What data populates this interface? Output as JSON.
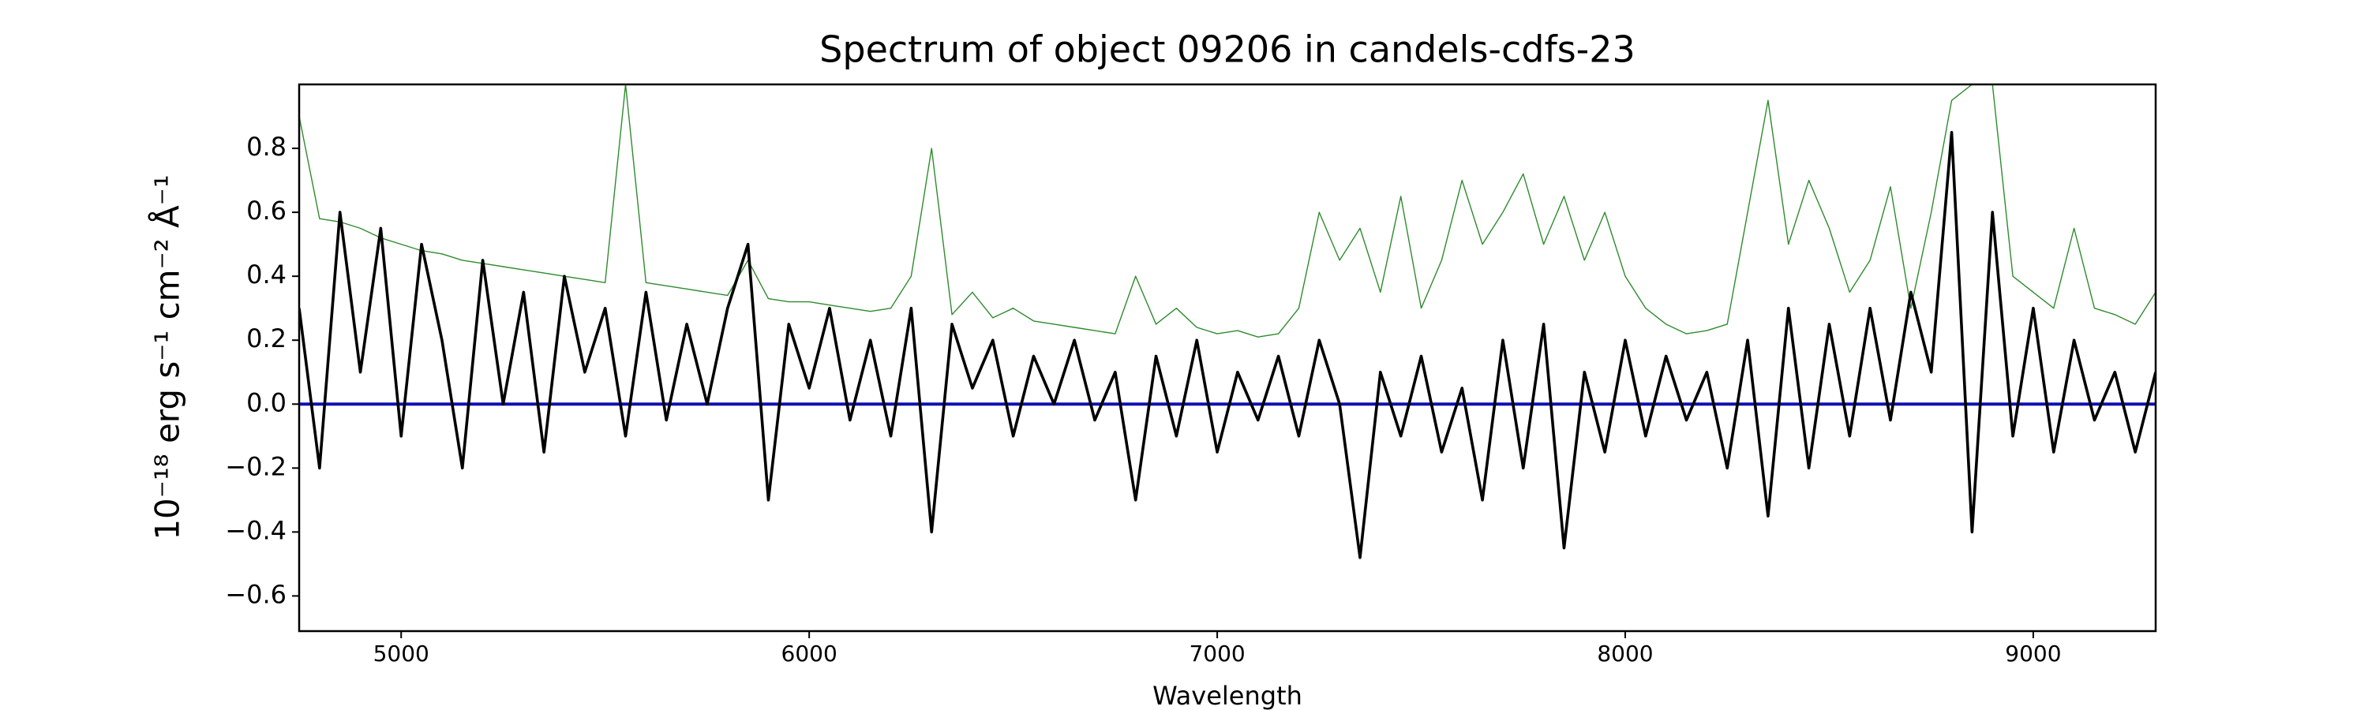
{
  "chart_data": {
    "type": "line",
    "title": "Spectrum of object 09206 in candels-cdfs-23",
    "xlabel": "Wavelength",
    "ylabel": "10⁻¹⁸ erg s⁻¹ cm⁻² Å⁻¹",
    "xlim": [
      4750,
      9300
    ],
    "ylim": [
      -0.71,
      1.0
    ],
    "xticks": [
      5000,
      6000,
      7000,
      8000,
      9000
    ],
    "yticks": [
      {
        "value": -0.6,
        "label": "−0.6"
      },
      {
        "value": -0.4,
        "label": "−0.4"
      },
      {
        "value": -0.2,
        "label": "−0.2"
      },
      {
        "value": 0,
        "label": "0.0"
      },
      {
        "value": 0.2,
        "label": "0.2"
      },
      {
        "value": 0.4,
        "label": "0.4"
      },
      {
        "value": 0.6,
        "label": "0.6"
      },
      {
        "value": 0.8,
        "label": "0.8"
      }
    ],
    "series": [
      {
        "color": "#2e8b2e",
        "width": 1.4,
        "x": [
          4750,
          4800,
          4850,
          4900,
          4950,
          5000,
          5050,
          5100,
          5150,
          5200,
          5250,
          5300,
          5350,
          5400,
          5450,
          5500,
          5550,
          5600,
          5650,
          5700,
          5750,
          5800,
          5850,
          5900,
          5950,
          6000,
          6050,
          6100,
          6150,
          6200,
          6250,
          6300,
          6350,
          6400,
          6450,
          6500,
          6550,
          6600,
          6650,
          6700,
          6750,
          6800,
          6850,
          6900,
          6950,
          7000,
          7050,
          7100,
          7150,
          7200,
          7250,
          7300,
          7350,
          7400,
          7450,
          7500,
          7550,
          7600,
          7650,
          7700,
          7750,
          7800,
          7850,
          7900,
          7950,
          8000,
          8050,
          8100,
          8150,
          8200,
          8250,
          8300,
          8350,
          8400,
          8450,
          8500,
          8550,
          8600,
          8650,
          8700,
          8750,
          8800,
          8850,
          8900,
          8950,
          9000,
          9050,
          9100,
          9150,
          9200,
          9250,
          9300
        ],
        "values": [
          0.9,
          0.58,
          0.57,
          0.55,
          0.52,
          0.5,
          0.48,
          0.47,
          0.45,
          0.44,
          0.43,
          0.42,
          0.41,
          0.4,
          0.39,
          0.38,
          1.0,
          0.38,
          0.37,
          0.36,
          0.35,
          0.34,
          0.45,
          0.33,
          0.32,
          0.32,
          0.31,
          0.3,
          0.29,
          0.3,
          0.4,
          0.8,
          0.28,
          0.35,
          0.27,
          0.3,
          0.26,
          0.25,
          0.24,
          0.23,
          0.22,
          0.4,
          0.25,
          0.3,
          0.24,
          0.22,
          0.23,
          0.21,
          0.22,
          0.3,
          0.6,
          0.45,
          0.55,
          0.35,
          0.65,
          0.3,
          0.45,
          0.7,
          0.5,
          0.6,
          0.72,
          0.5,
          0.65,
          0.45,
          0.6,
          0.4,
          0.3,
          0.25,
          0.22,
          0.23,
          0.25,
          0.6,
          0.95,
          0.5,
          0.7,
          0.55,
          0.35,
          0.45,
          0.68,
          0.3,
          0.6,
          0.95,
          1.0,
          1.0,
          0.4,
          0.35,
          0.3,
          0.55,
          0.3,
          0.28,
          0.25,
          0.35
        ]
      },
      {
        "color": "#1010b0",
        "width": 4,
        "x": [
          4750,
          9300
        ],
        "values": [
          0,
          0
        ]
      },
      {
        "color": "#000000",
        "width": 3.6,
        "x": [
          4750,
          4800,
          4850,
          4900,
          4950,
          5000,
          5050,
          5100,
          5150,
          5200,
          5250,
          5300,
          5350,
          5400,
          5450,
          5500,
          5550,
          5600,
          5650,
          5700,
          5750,
          5800,
          5850,
          5900,
          5950,
          6000,
          6050,
          6100,
          6150,
          6200,
          6250,
          6300,
          6350,
          6400,
          6450,
          6500,
          6550,
          6600,
          6650,
          6700,
          6750,
          6800,
          6850,
          6900,
          6950,
          7000,
          7050,
          7100,
          7150,
          7200,
          7250,
          7300,
          7350,
          7400,
          7450,
          7500,
          7550,
          7600,
          7650,
          7700,
          7750,
          7800,
          7850,
          7900,
          7950,
          8000,
          8050,
          8100,
          8150,
          8200,
          8250,
          8300,
          8350,
          8400,
          8450,
          8500,
          8550,
          8600,
          8650,
          8700,
          8750,
          8800,
          8850,
          8900,
          8950,
          9000,
          9050,
          9100,
          9150,
          9200,
          9250,
          9300
        ],
        "values": [
          0.3,
          -0.2,
          0.6,
          0.1,
          0.55,
          -0.1,
          0.5,
          0.2,
          -0.2,
          0.45,
          0.0,
          0.35,
          -0.15,
          0.4,
          0.1,
          0.3,
          -0.1,
          0.35,
          -0.05,
          0.25,
          0.0,
          0.3,
          0.5,
          -0.3,
          0.25,
          0.05,
          0.3,
          -0.05,
          0.2,
          -0.1,
          0.3,
          -0.4,
          0.25,
          0.05,
          0.2,
          -0.1,
          0.15,
          0.0,
          0.2,
          -0.05,
          0.1,
          -0.3,
          0.15,
          -0.1,
          0.2,
          -0.15,
          0.1,
          -0.05,
          0.15,
          -0.1,
          0.2,
          0.0,
          -0.48,
          0.1,
          -0.1,
          0.15,
          -0.15,
          0.05,
          -0.3,
          0.2,
          -0.2,
          0.25,
          -0.45,
          0.1,
          -0.15,
          0.2,
          -0.1,
          0.15,
          -0.05,
          0.1,
          -0.2,
          0.2,
          -0.35,
          0.3,
          -0.2,
          0.25,
          -0.1,
          0.3,
          -0.05,
          0.35,
          0.1,
          0.85,
          -0.4,
          0.6,
          -0.1,
          0.3,
          -0.15,
          0.2,
          -0.05,
          0.1,
          -0.15,
          0.1
        ]
      }
    ]
  }
}
